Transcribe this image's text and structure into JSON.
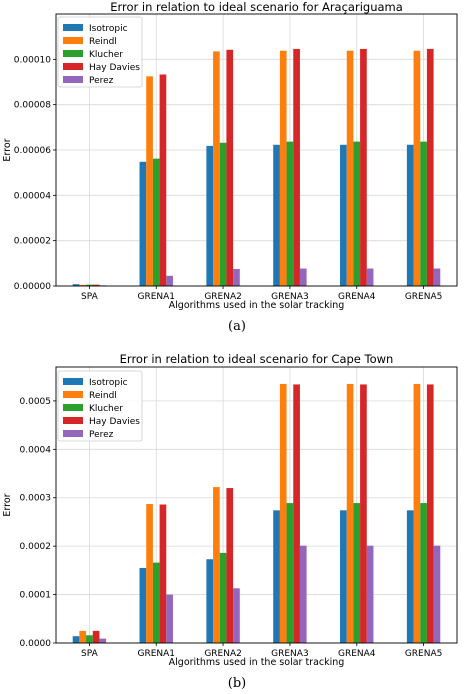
{
  "chart_data": [
    {
      "type": "bar",
      "title": "Error in relation to ideal scenario for Araçariguama",
      "xlabel": "Algorithms used in the solar tracking",
      "ylabel": "Error",
      "caption": "(a)",
      "categories": [
        "SPA",
        "GRENA1",
        "GRENA2",
        "GRENA3",
        "GRENA4",
        "GRENA5"
      ],
      "ylim": [
        0,
        0.00012
      ],
      "yticks": [
        "0.00000",
        "0.00002",
        "0.00004",
        "0.00006",
        "0.00008",
        "0.00010"
      ],
      "ytick_values": [
        0,
        2e-05,
        4e-05,
        6e-05,
        8e-05,
        0.0001
      ],
      "legend_position": "top-left",
      "grid": true,
      "series": [
        {
          "name": "Isotropic",
          "color": "#1f77b4",
          "values": [
            8e-07,
            5.48e-05,
            6.18e-05,
            6.23e-05,
            6.23e-05,
            6.23e-05
          ]
        },
        {
          "name": "Reindl",
          "color": "#ff7f0e",
          "values": [
            5e-07,
            9.25e-05,
            0.0001035,
            0.0001038,
            0.0001038,
            0.0001038
          ]
        },
        {
          "name": "Klucher",
          "color": "#2ca02c",
          "values": [
            6e-07,
            5.62e-05,
            6.32e-05,
            6.37e-05,
            6.37e-05,
            6.37e-05
          ]
        },
        {
          "name": "Hay Davies",
          "color": "#d62728",
          "values": [
            6e-07,
            9.33e-05,
            0.0001042,
            0.0001046,
            0.0001046,
            0.0001046
          ]
        },
        {
          "name": "Perez",
          "color": "#9467bd",
          "values": [
            3e-07,
            4.5e-06,
            7.5e-06,
            7.7e-06,
            7.7e-06,
            7.7e-06
          ]
        }
      ]
    },
    {
      "type": "bar",
      "title": "Error in relation to ideal scenario for Cape Town",
      "xlabel": "Algorithms used in the solar tracking",
      "ylabel": "Error",
      "caption": "(b)",
      "categories": [
        "SPA",
        "GRENA1",
        "GRENA2",
        "GRENA3",
        "GRENA4",
        "GRENA5"
      ],
      "ylim": [
        0,
        0.00057
      ],
      "yticks": [
        "0.0000",
        "0.0001",
        "0.0002",
        "0.0003",
        "0.0004",
        "0.0005"
      ],
      "ytick_values": [
        0,
        0.0001,
        0.0002,
        0.0003,
        0.0004,
        0.0005
      ],
      "legend_position": "top-left",
      "grid": true,
      "series": [
        {
          "name": "Isotropic",
          "color": "#1f77b4",
          "values": [
            1.4e-05,
            0.000155,
            0.000173,
            0.000274,
            0.000274,
            0.000274
          ]
        },
        {
          "name": "Reindl",
          "color": "#ff7f0e",
          "values": [
            2.5e-05,
            0.000287,
            0.000322,
            0.000535,
            0.000535,
            0.000535
          ]
        },
        {
          "name": "Klucher",
          "color": "#2ca02c",
          "values": [
            1.6e-05,
            0.000166,
            0.000186,
            0.000289,
            0.000289,
            0.000289
          ]
        },
        {
          "name": "Hay Davies",
          "color": "#d62728",
          "values": [
            2.5e-05,
            0.000286,
            0.00032,
            0.000534,
            0.000534,
            0.000534
          ]
        },
        {
          "name": "Perez",
          "color": "#9467bd",
          "values": [
            9e-06,
            0.0001,
            0.000113,
            0.000201,
            0.000201,
            0.000201
          ]
        }
      ]
    }
  ]
}
